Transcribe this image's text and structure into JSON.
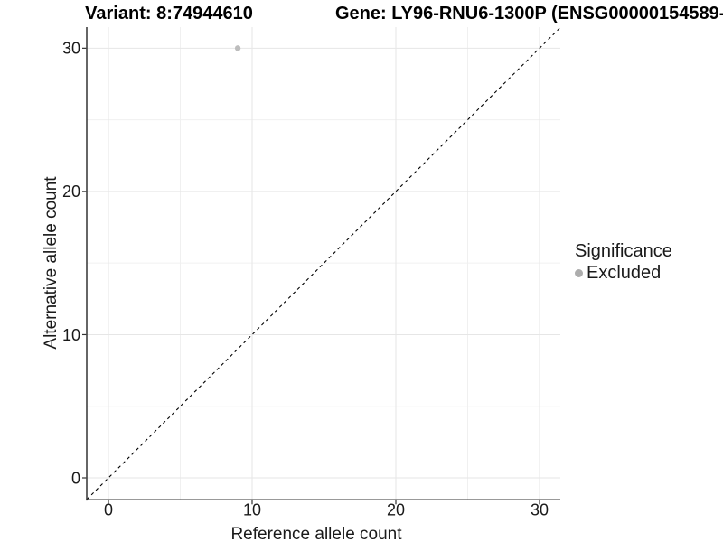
{
  "chart_data": {
    "type": "scatter",
    "title_left": "Variant: 8:74944610",
    "title_right": "Gene: LY96-RNU6-1300P (ENSG00000154589-",
    "xlabel": "Reference allele count",
    "ylabel": "Alternative allele count",
    "xlim": [
      -1.5,
      31.5
    ],
    "ylim": [
      -1.5,
      31.5
    ],
    "x_ticks": [
      0,
      10,
      20,
      30
    ],
    "y_ticks": [
      0,
      10,
      20,
      30
    ],
    "x_minor_ticks": [
      5,
      15,
      25
    ],
    "y_minor_ticks": [
      5,
      15,
      25
    ],
    "grid": "major and minor gridlines, light gray on white panel",
    "points": [
      {
        "x": 9,
        "y": 30,
        "series": "Excluded"
      }
    ],
    "series": [
      {
        "name": "Excluded",
        "color": "#bdbdbd"
      }
    ],
    "identity_line": {
      "equation": "y = x",
      "style": "dashed",
      "color": "#000000"
    },
    "legend": {
      "position": "right",
      "title": "Significance",
      "items": [
        {
          "label": "Excluded",
          "color": "#adadad"
        }
      ]
    }
  },
  "colors": {
    "background": "#ffffff",
    "grid_major": "#e6e6e6",
    "grid_minor": "#f0f0f0",
    "axis": "#333333",
    "tick_text": "#1a1a1a",
    "title_text": "#000000",
    "point": "#bdbdbd"
  }
}
